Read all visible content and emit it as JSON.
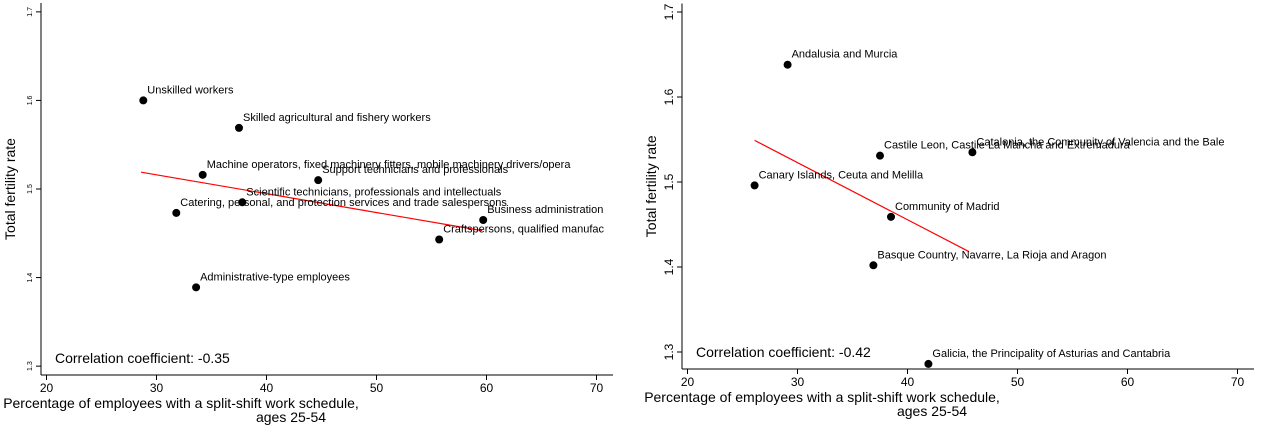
{
  "chart_data": [
    {
      "type": "scatter",
      "y_label": "Total fertility rate",
      "x_label": [
        "Percentage of employees with a split-shift work schedule,",
        "ages 25-54"
      ],
      "annotation": "Correlation coefficient: -0.35",
      "xlim": [
        19.5,
        71.5
      ],
      "xticks": [
        20,
        30,
        40,
        50,
        60,
        70
      ],
      "ylim": [
        1.29,
        1.71
      ],
      "yticks": [
        1.3,
        1.4,
        1.5,
        1.6,
        1.7
      ],
      "color": "#000000",
      "fit_color": "#ff0000",
      "labels": [
        "Unskilled workers",
        "Skilled agricultural and fishery workers",
        "Machine operators, fixed machinery fitters, mobile machinery drivers/opera",
        "Support technicians and professionals",
        "Scientific technicians, professionals and intellectuals",
        "Catering, personal, and protection services and trade salespersons",
        "Business administration",
        "Craftspersons, qualified manufac",
        "Administrative-type employees"
      ],
      "x": [
        28.8,
        37.5,
        34.2,
        44.7,
        37.8,
        31.8,
        59.7,
        55.7,
        33.6
      ],
      "y": [
        1.6,
        1.569,
        1.516,
        1.51,
        1.485,
        1.473,
        1.465,
        1.443,
        1.389
      ],
      "fit": {
        "x": [
          28.6,
          59.6
        ],
        "y": [
          1.519,
          1.453
        ]
      }
    },
    {
      "type": "scatter",
      "y_label": "Total fertility rate",
      "x_label": [
        "Percentage of employees with a split-shift work schedule,",
        "ages 25-54"
      ],
      "annotation": "Correlation coefficient: -0.42",
      "xlim": [
        19.5,
        71.5
      ],
      "xticks": [
        20,
        30,
        40,
        50,
        60,
        70
      ],
      "ylim": [
        1.28,
        1.71
      ],
      "yticks": [
        1.3,
        1.4,
        1.5,
        1.6,
        1.7
      ],
      "color": "#000000",
      "fit_color": "#ff0000",
      "labels": [
        "Andalusia and Murcia",
        "Castile Leon, Castile La Mancha and Extremadura",
        "Catalonia, the Community of Valencia and the Bale",
        "Canary Islands, Ceuta and Melilla",
        "Community of Madrid",
        "Basque Country, Navarre, La Rioja and Aragon",
        "Galicia, the Principality of Asturias and Cantabria"
      ],
      "x": [
        29.1,
        37.5,
        45.9,
        26.1,
        38.5,
        36.9,
        41.9
      ],
      "y": [
        1.638,
        1.531,
        1.535,
        1.496,
        1.459,
        1.402,
        1.286
      ],
      "fit": {
        "x": [
          26.1,
          45.6
        ],
        "y": [
          1.549,
          1.418
        ]
      }
    }
  ]
}
